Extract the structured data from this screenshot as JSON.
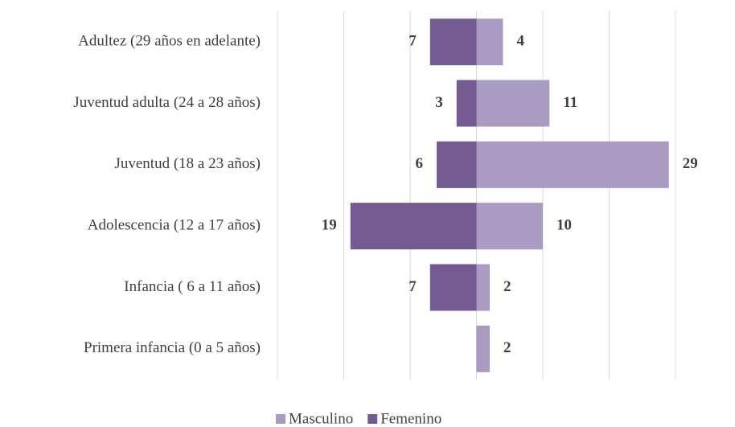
{
  "chart_data": {
    "type": "pyramid",
    "categories": [
      "Adultez (29 años en adelante)",
      "Juventud adulta (24 a 28 años)",
      "Juventud (18 a 23 años)",
      "Adolescencia (12 a 17 años)",
      "Infancia ( 6 a 11 años)",
      "Primera infancia (0 a 5 años)"
    ],
    "series": [
      {
        "name": "Masculino",
        "color": "#a99bc1",
        "values": [
          4,
          11,
          29,
          10,
          2,
          2
        ]
      },
      {
        "name": "Femenino",
        "color": "#735a91",
        "values": [
          7,
          3,
          6,
          19,
          7,
          null
        ]
      }
    ],
    "xlim": [
      -30,
      30
    ],
    "xticks": [
      -30,
      -20,
      -10,
      0,
      10,
      20,
      30
    ],
    "grid": true,
    "legend": "bottom"
  }
}
